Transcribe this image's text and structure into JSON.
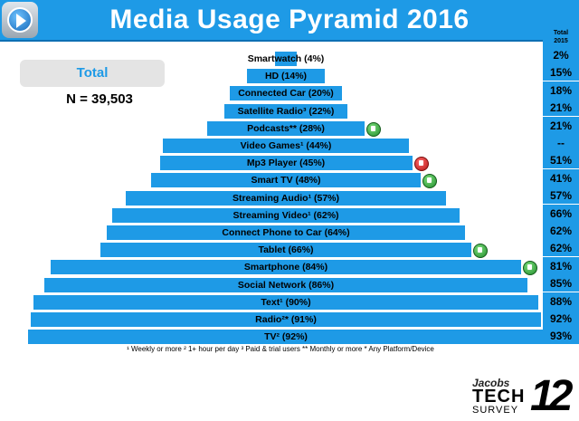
{
  "title": "Media Usage Pyramid 2016",
  "total_label": "Total",
  "n_label": "N = 39,503",
  "side_column": {
    "header_line1": "Total",
    "header_line2": "2015"
  },
  "footnote": "¹ Weekly or more  ² 1+ hour per day  ³ Paid & trial users  ** Monthly or more * Any Platform/Device",
  "brand": {
    "line1": "Jacobs",
    "line2": "TECH",
    "line3": "SURVEY",
    "number": "12"
  },
  "colors": {
    "bar": "#1e9ae6",
    "up": "#2ca02c",
    "down": "#d62728"
  },
  "chart_data": {
    "type": "bar",
    "orientation": "horizontal-centered-pyramid",
    "title": "Media Usage Pyramid 2016",
    "categories": [
      "Smartwatch (4%)",
      "HD (14%)",
      "Connected Car (20%)",
      "Satellite Radio³ (22%)",
      "Podcasts** (28%)",
      "Video Games¹ (44%)",
      "Mp3 Player (45%)",
      "Smart TV (48%)",
      "Streaming Audio¹ (57%)",
      "Streaming Video¹ (62%)",
      "Connect Phone to Car (64%)",
      "Tablet (66%)",
      "Smartphone (84%)",
      "Social Network (86%)",
      "Text¹ (90%)",
      "Radio²* (91%)",
      "TV² (92%)"
    ],
    "series": [
      {
        "values": [
          4,
          14,
          20,
          22,
          28,
          44,
          45,
          48,
          57,
          62,
          64,
          66,
          84,
          86,
          90,
          91,
          92
        ]
      }
    ],
    "total_2015": [
      "2%",
      "15%",
      "18%",
      "21%",
      "21%",
      "--",
      "51%",
      "41%",
      "57%",
      "66%",
      "62%",
      "62%",
      "81%",
      "85%",
      "88%",
      "92%",
      "93%"
    ],
    "trend_icons": [
      "",
      "",
      "",
      "",
      "up",
      "",
      "down",
      "up",
      "",
      "",
      "",
      "up",
      "up",
      "",
      "",
      "",
      ""
    ],
    "xlim": [
      0,
      100
    ]
  }
}
